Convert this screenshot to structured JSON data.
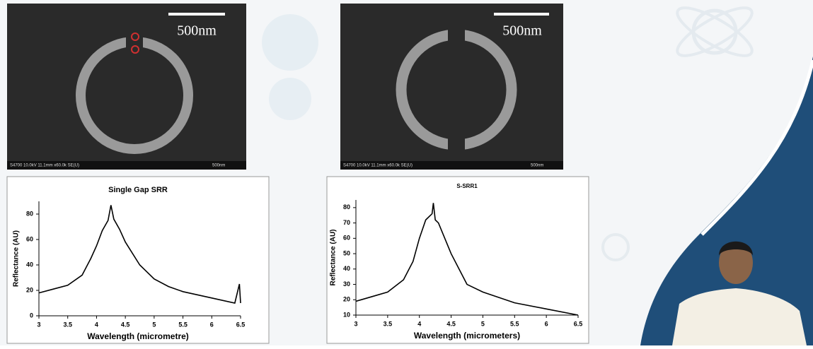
{
  "images": [
    {
      "scale_label": "500nm",
      "footer": "S4700 10.0kV 11.1mm x60.0k SE(U)",
      "footer_scale": "500nm"
    },
    {
      "scale_label": "500nm",
      "footer": "S4700 10.0kV 11.1mm x60.0k SE(U)",
      "footer_scale": "500nm"
    }
  ],
  "chart_data": [
    {
      "type": "line",
      "title": "Single Gap SRR",
      "x_label": "Wavelength (micrometre)",
      "y_label": "Reflectance (AU)",
      "x": [
        3,
        3.25,
        3.5,
        3.75,
        3.9,
        4,
        4.1,
        4.2,
        4.25,
        4.3,
        4.4,
        4.5,
        4.75,
        5,
        5.25,
        5.5,
        6,
        6.4,
        6.48,
        6.5
      ],
      "values": [
        18,
        21,
        24,
        32,
        45,
        55,
        67,
        75,
        87,
        76,
        68,
        58,
        40,
        29,
        23,
        19,
        14,
        10,
        25,
        10
      ],
      "color": "#000000",
      "xlim": [
        3,
        6.5
      ],
      "xticks": [
        3,
        3.5,
        4,
        4.5,
        5,
        5.5,
        6,
        6.5
      ],
      "ylim": [
        0,
        90
      ],
      "yticks": [
        0,
        20,
        40,
        60,
        80
      ]
    },
    {
      "type": "line",
      "title": "S-SRR1",
      "x_label": "Wavelength (micrometers)",
      "y_label": "Reflectance (AU)",
      "x": [
        3,
        3.25,
        3.5,
        3.75,
        3.9,
        4,
        4.1,
        4.2,
        4.22,
        4.25,
        4.3,
        4.5,
        4.75,
        5,
        5.5,
        6,
        6.5
      ],
      "values": [
        19,
        22,
        25,
        33,
        45,
        60,
        72,
        76,
        83,
        72,
        70,
        50,
        30,
        25,
        18,
        14,
        10
      ],
      "color": "#000000",
      "xlim": [
        3,
        6.5
      ],
      "xticks": [
        3,
        3.5,
        4,
        4.5,
        5,
        5.5,
        6,
        6.5
      ],
      "ylim": [
        10,
        85
      ],
      "yticks": [
        10,
        20,
        30,
        40,
        50,
        60,
        70,
        80
      ]
    }
  ]
}
